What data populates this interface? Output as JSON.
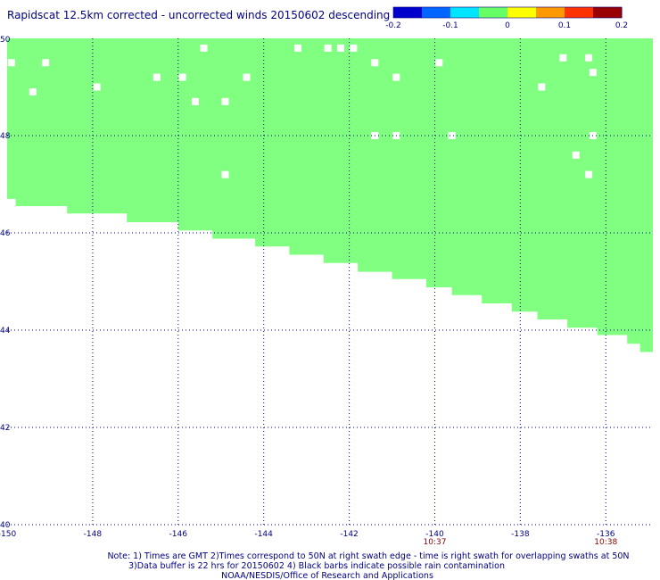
{
  "title": "Rapidscat 12.5km corrected - uncorrected winds 20150602 descending",
  "colorbar": {
    "ticks": [
      "-0.2",
      "-0.1",
      "0",
      "0.1",
      "0.2"
    ],
    "colors": [
      "#0000cc",
      "#0066ff",
      "#00e5ff",
      "#66ff66",
      "#ffff00",
      "#ff9900",
      "#ff3300",
      "#990000"
    ]
  },
  "chart_data": {
    "type": "heatmap",
    "title": "Rapidscat 12.5km corrected - uncorrected winds 20150602 descending",
    "xlim": [
      -150,
      -134.9
    ],
    "ylim": [
      40,
      50
    ],
    "x_ticks": [
      "-150",
      "-148",
      "-146",
      "-144",
      "-142",
      "-140",
      "-138",
      "-136"
    ],
    "y_ticks": [
      "40",
      "42",
      "44",
      "46",
      "48",
      "50"
    ],
    "grid": true,
    "fill_color": "#80ff80",
    "fill_value": 0,
    "swath_edge": [
      {
        "x0": -150.0,
        "x1": -149.8,
        "y": 46.7
      },
      {
        "x0": -149.8,
        "x1": -148.6,
        "y": 46.55
      },
      {
        "x0": -148.6,
        "x1": -147.2,
        "y": 46.4
      },
      {
        "x0": -147.2,
        "x1": -146.0,
        "y": 46.22
      },
      {
        "x0": -146.0,
        "x1": -145.2,
        "y": 46.05
      },
      {
        "x0": -145.2,
        "x1": -144.2,
        "y": 45.88
      },
      {
        "x0": -144.2,
        "x1": -143.4,
        "y": 45.72
      },
      {
        "x0": -143.4,
        "x1": -142.6,
        "y": 45.55
      },
      {
        "x0": -142.6,
        "x1": -141.8,
        "y": 45.38
      },
      {
        "x0": -141.8,
        "x1": -141.0,
        "y": 45.2
      },
      {
        "x0": -141.0,
        "x1": -140.2,
        "y": 45.05
      },
      {
        "x0": -140.2,
        "x1": -139.6,
        "y": 44.88
      },
      {
        "x0": -139.6,
        "x1": -138.9,
        "y": 44.72
      },
      {
        "x0": -138.9,
        "x1": -138.2,
        "y": 44.55
      },
      {
        "x0": -138.2,
        "x1": -137.6,
        "y": 44.38
      },
      {
        "x0": -137.6,
        "x1": -136.9,
        "y": 44.22
      },
      {
        "x0": -136.9,
        "x1": -136.2,
        "y": 44.05
      },
      {
        "x0": -136.2,
        "x1": -135.5,
        "y": 43.9
      },
      {
        "x0": -135.5,
        "x1": -135.2,
        "y": 43.72
      },
      {
        "x0": -135.2,
        "x1": -134.9,
        "y": 43.55
      }
    ],
    "missing_cells": [
      [
        -145.4,
        49.8
      ],
      [
        -143.2,
        49.8
      ],
      [
        -142.5,
        49.8
      ],
      [
        -142.2,
        49.8
      ],
      [
        -141.9,
        49.8
      ],
      [
        -149.9,
        49.5
      ],
      [
        -149.1,
        49.5
      ],
      [
        -141.4,
        49.5
      ],
      [
        -139.9,
        49.5
      ],
      [
        -137.0,
        49.6
      ],
      [
        -136.4,
        49.6
      ],
      [
        -136.3,
        49.3
      ],
      [
        -146.5,
        49.2
      ],
      [
        -145.9,
        49.2
      ],
      [
        -144.4,
        49.2
      ],
      [
        -140.9,
        49.2
      ],
      [
        -147.9,
        49.0
      ],
      [
        -137.5,
        49.0
      ],
      [
        -149.4,
        48.9
      ],
      [
        -145.6,
        48.7
      ],
      [
        -144.9,
        48.7
      ],
      [
        -141.4,
        48.0
      ],
      [
        -140.9,
        48.0
      ],
      [
        -139.6,
        48.0
      ],
      [
        -136.3,
        48.0
      ],
      [
        -136.7,
        47.6
      ],
      [
        -144.9,
        47.2
      ],
      [
        -136.4,
        47.2
      ]
    ],
    "pass_times": [
      {
        "lon": -140,
        "label": "10:37"
      },
      {
        "lon": -136,
        "label": "10:38"
      }
    ]
  },
  "notes": [
    "Note: 1) Times are GMT 2)Times correspond to 50N at right swath edge - time is right swath for overlapping swaths at 50N",
    "3)Data buffer is 22 hrs for 20150602 4) Black barbs indicate possible rain contamination",
    "NOAA/NESDIS/Office of Research and Applications"
  ]
}
